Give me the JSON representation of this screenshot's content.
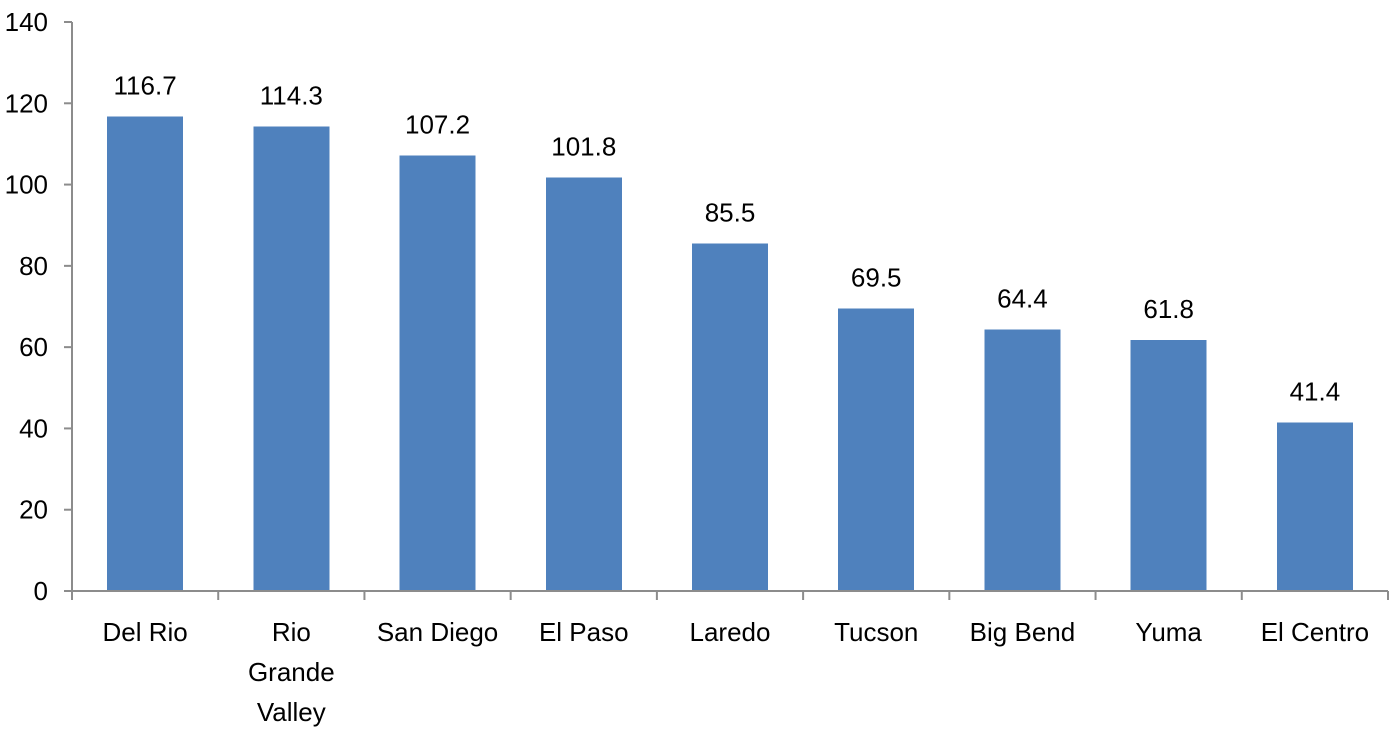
{
  "chart_data": {
    "type": "bar",
    "title": "",
    "xlabel": "",
    "ylabel": "",
    "categories": [
      "Del Rio",
      "Rio Grande Valley",
      "San Diego",
      "El Paso",
      "Laredo",
      "Tucson",
      "Big Bend",
      "Yuma",
      "El Centro"
    ],
    "category_lines": [
      [
        "Del Rio"
      ],
      [
        "Rio",
        "Grande",
        "Valley"
      ],
      [
        "San Diego"
      ],
      [
        "El Paso"
      ],
      [
        "Laredo"
      ],
      [
        "Tucson"
      ],
      [
        "Big Bend"
      ],
      [
        "Yuma"
      ],
      [
        "El Centro"
      ]
    ],
    "values": [
      116.7,
      114.3,
      107.2,
      101.8,
      85.5,
      69.5,
      64.4,
      61.8,
      41.4
    ],
    "data_labels": [
      "116.7",
      "114.3",
      "107.2",
      "101.8",
      "85.5",
      "69.5",
      "64.4",
      "61.8",
      "41.4"
    ],
    "ylim": [
      0,
      140
    ],
    "yticks": [
      0,
      20,
      40,
      60,
      80,
      100,
      120,
      140
    ],
    "grid": false,
    "legend": "none",
    "bar_color": "#4f81bd"
  }
}
